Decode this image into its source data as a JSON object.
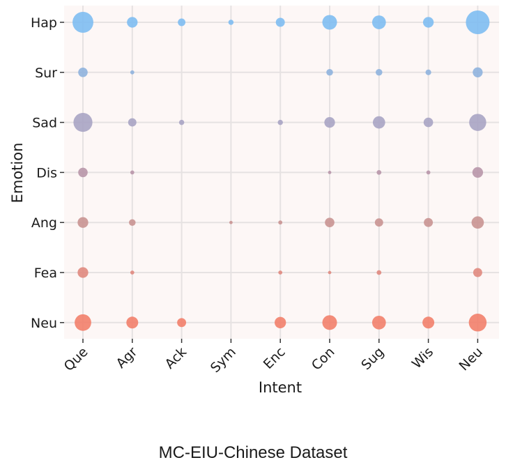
{
  "caption": "MC-EIU-Chinese Dataset",
  "chart_data": {
    "type": "scatter",
    "subtype": "bubble-matrix",
    "xlabel": "Intent",
    "ylabel": "Emotion",
    "x_categories": [
      "Que",
      "Agr",
      "Ack",
      "Sym",
      "Enc",
      "Con",
      "Sug",
      "Wis",
      "Neu"
    ],
    "y_categories": [
      "Hap",
      "Sur",
      "Sad",
      "Dis",
      "Ang",
      "Fea",
      "Neu"
    ],
    "grid": true,
    "legend": "none",
    "colors": {
      "plot_background": "#fdf7f6",
      "grid": "#e6e2e2",
      "Hap": "#7ebcf2",
      "Sur": "#8fb2de",
      "Sad": "#a8a4c4",
      "Dis": "#b896aa",
      "Ang": "#c99492",
      "Fea": "#e08a80",
      "Neu": "#f2806c"
    },
    "relative_size_note": "bubble radius relative to largest bubble (1.0)",
    "bubbles": [
      {
        "x": "Que",
        "y": "Hap",
        "size": 0.88
      },
      {
        "x": "Agr",
        "y": "Hap",
        "size": 0.45
      },
      {
        "x": "Ack",
        "y": "Hap",
        "size": 0.32
      },
      {
        "x": "Sym",
        "y": "Hap",
        "size": 0.22
      },
      {
        "x": "Enc",
        "y": "Hap",
        "size": 0.38
      },
      {
        "x": "Con",
        "y": "Hap",
        "size": 0.62
      },
      {
        "x": "Sug",
        "y": "Hap",
        "size": 0.58
      },
      {
        "x": "Wis",
        "y": "Hap",
        "size": 0.45
      },
      {
        "x": "Neu",
        "y": "Hap",
        "size": 1.0
      },
      {
        "x": "Que",
        "y": "Sur",
        "size": 0.4
      },
      {
        "x": "Agr",
        "y": "Sur",
        "size": 0.17
      },
      {
        "x": "Con",
        "y": "Sur",
        "size": 0.28
      },
      {
        "x": "Sug",
        "y": "Sur",
        "size": 0.28
      },
      {
        "x": "Wis",
        "y": "Sur",
        "size": 0.24
      },
      {
        "x": "Neu",
        "y": "Sur",
        "size": 0.42
      },
      {
        "x": "Que",
        "y": "Sad",
        "size": 0.8
      },
      {
        "x": "Agr",
        "y": "Sad",
        "size": 0.35
      },
      {
        "x": "Ack",
        "y": "Sad",
        "size": 0.22
      },
      {
        "x": "Enc",
        "y": "Sad",
        "size": 0.22
      },
      {
        "x": "Con",
        "y": "Sad",
        "size": 0.45
      },
      {
        "x": "Sug",
        "y": "Sad",
        "size": 0.52
      },
      {
        "x": "Wis",
        "y": "Sad",
        "size": 0.4
      },
      {
        "x": "Neu",
        "y": "Sad",
        "size": 0.72
      },
      {
        "x": "Que",
        "y": "Dis",
        "size": 0.4
      },
      {
        "x": "Agr",
        "y": "Dis",
        "size": 0.17
      },
      {
        "x": "Con",
        "y": "Dis",
        "size": 0.14
      },
      {
        "x": "Sug",
        "y": "Dis",
        "size": 0.2
      },
      {
        "x": "Wis",
        "y": "Dis",
        "size": 0.17
      },
      {
        "x": "Neu",
        "y": "Dis",
        "size": 0.45
      },
      {
        "x": "Que",
        "y": "Ang",
        "size": 0.45
      },
      {
        "x": "Agr",
        "y": "Ang",
        "size": 0.28
      },
      {
        "x": "Sym",
        "y": "Ang",
        "size": 0.14
      },
      {
        "x": "Enc",
        "y": "Ang",
        "size": 0.17
      },
      {
        "x": "Con",
        "y": "Ang",
        "size": 0.4
      },
      {
        "x": "Sug",
        "y": "Ang",
        "size": 0.35
      },
      {
        "x": "Wis",
        "y": "Ang",
        "size": 0.38
      },
      {
        "x": "Neu",
        "y": "Ang",
        "size": 0.52
      },
      {
        "x": "Que",
        "y": "Fea",
        "size": 0.45
      },
      {
        "x": "Agr",
        "y": "Fea",
        "size": 0.17
      },
      {
        "x": "Enc",
        "y": "Fea",
        "size": 0.17
      },
      {
        "x": "Con",
        "y": "Fea",
        "size": 0.14
      },
      {
        "x": "Sug",
        "y": "Fea",
        "size": 0.2
      },
      {
        "x": "Neu",
        "y": "Fea",
        "size": 0.38
      },
      {
        "x": "Que",
        "y": "Neu",
        "size": 0.7
      },
      {
        "x": "Agr",
        "y": "Neu",
        "size": 0.5
      },
      {
        "x": "Ack",
        "y": "Neu",
        "size": 0.38
      },
      {
        "x": "Enc",
        "y": "Neu",
        "size": 0.48
      },
      {
        "x": "Con",
        "y": "Neu",
        "size": 0.62
      },
      {
        "x": "Sug",
        "y": "Neu",
        "size": 0.58
      },
      {
        "x": "Wis",
        "y": "Neu",
        "size": 0.5
      },
      {
        "x": "Neu",
        "y": "Neu",
        "size": 0.75
      }
    ]
  }
}
